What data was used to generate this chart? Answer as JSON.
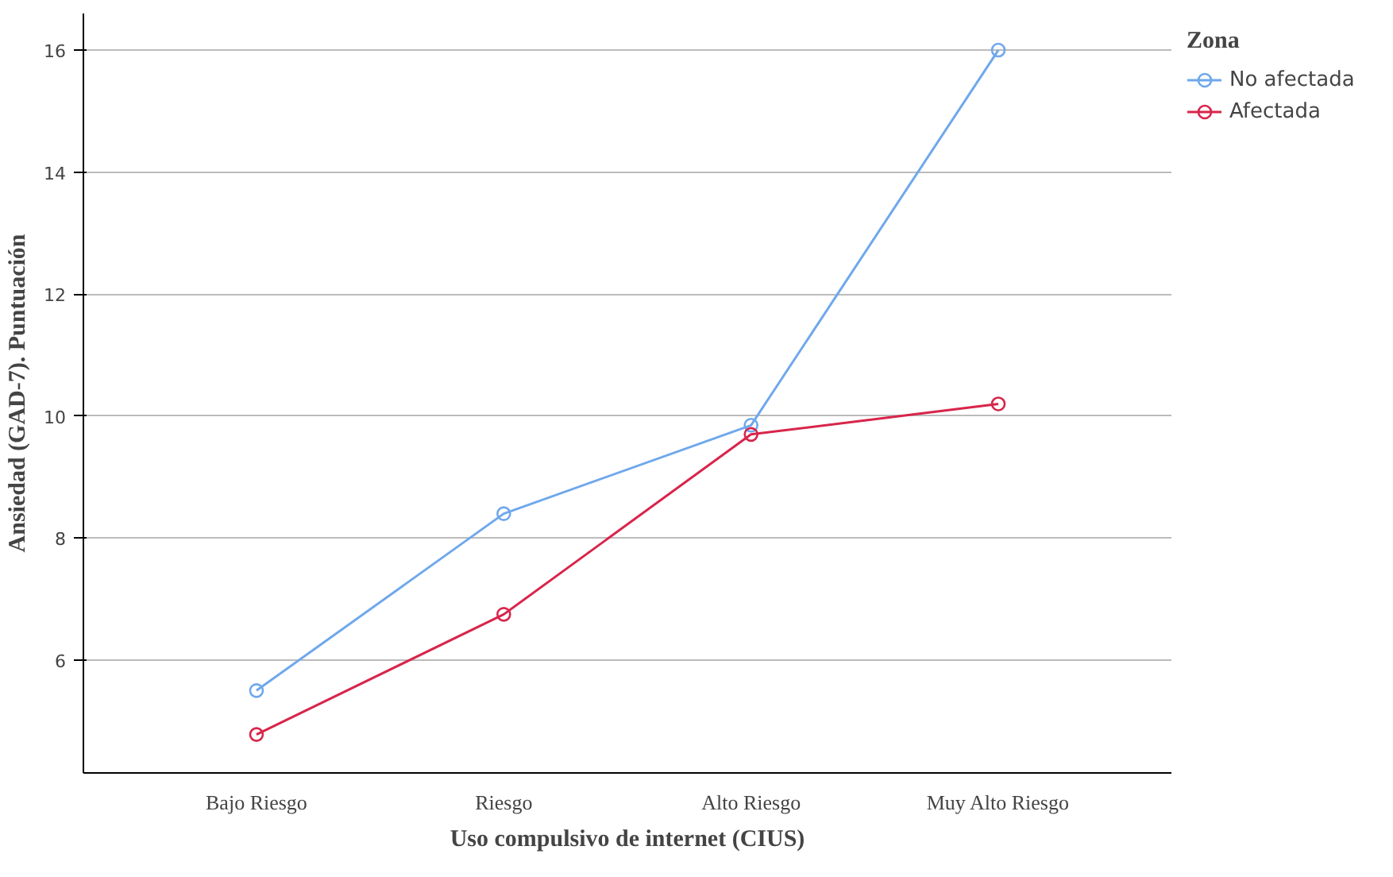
{
  "chart_data": {
    "type": "line",
    "xlabel": "Uso compulsivo de internet (CIUS)",
    "ylabel": "Ansiedad (GAD-7). Puntuación",
    "legend_title": "Zona",
    "categories": [
      "Bajo Riesgo",
      "Riesgo",
      "Alto Riesgo",
      "Muy Alto Riesgo"
    ],
    "series": [
      {
        "name": "No afectada",
        "color": "#6fa8ec",
        "values": [
          5.5,
          8.4,
          9.85,
          16.0
        ]
      },
      {
        "name": "Afectada",
        "color": "#d8254a",
        "values": [
          4.78,
          6.75,
          9.7,
          10.2
        ]
      }
    ],
    "ylim": [
      4.15,
      16.6
    ],
    "yticks": [
      6,
      8,
      10,
      12,
      14,
      16
    ],
    "grid": "y",
    "legend": "top right",
    "marker": "circle",
    "line_style": "solid"
  }
}
